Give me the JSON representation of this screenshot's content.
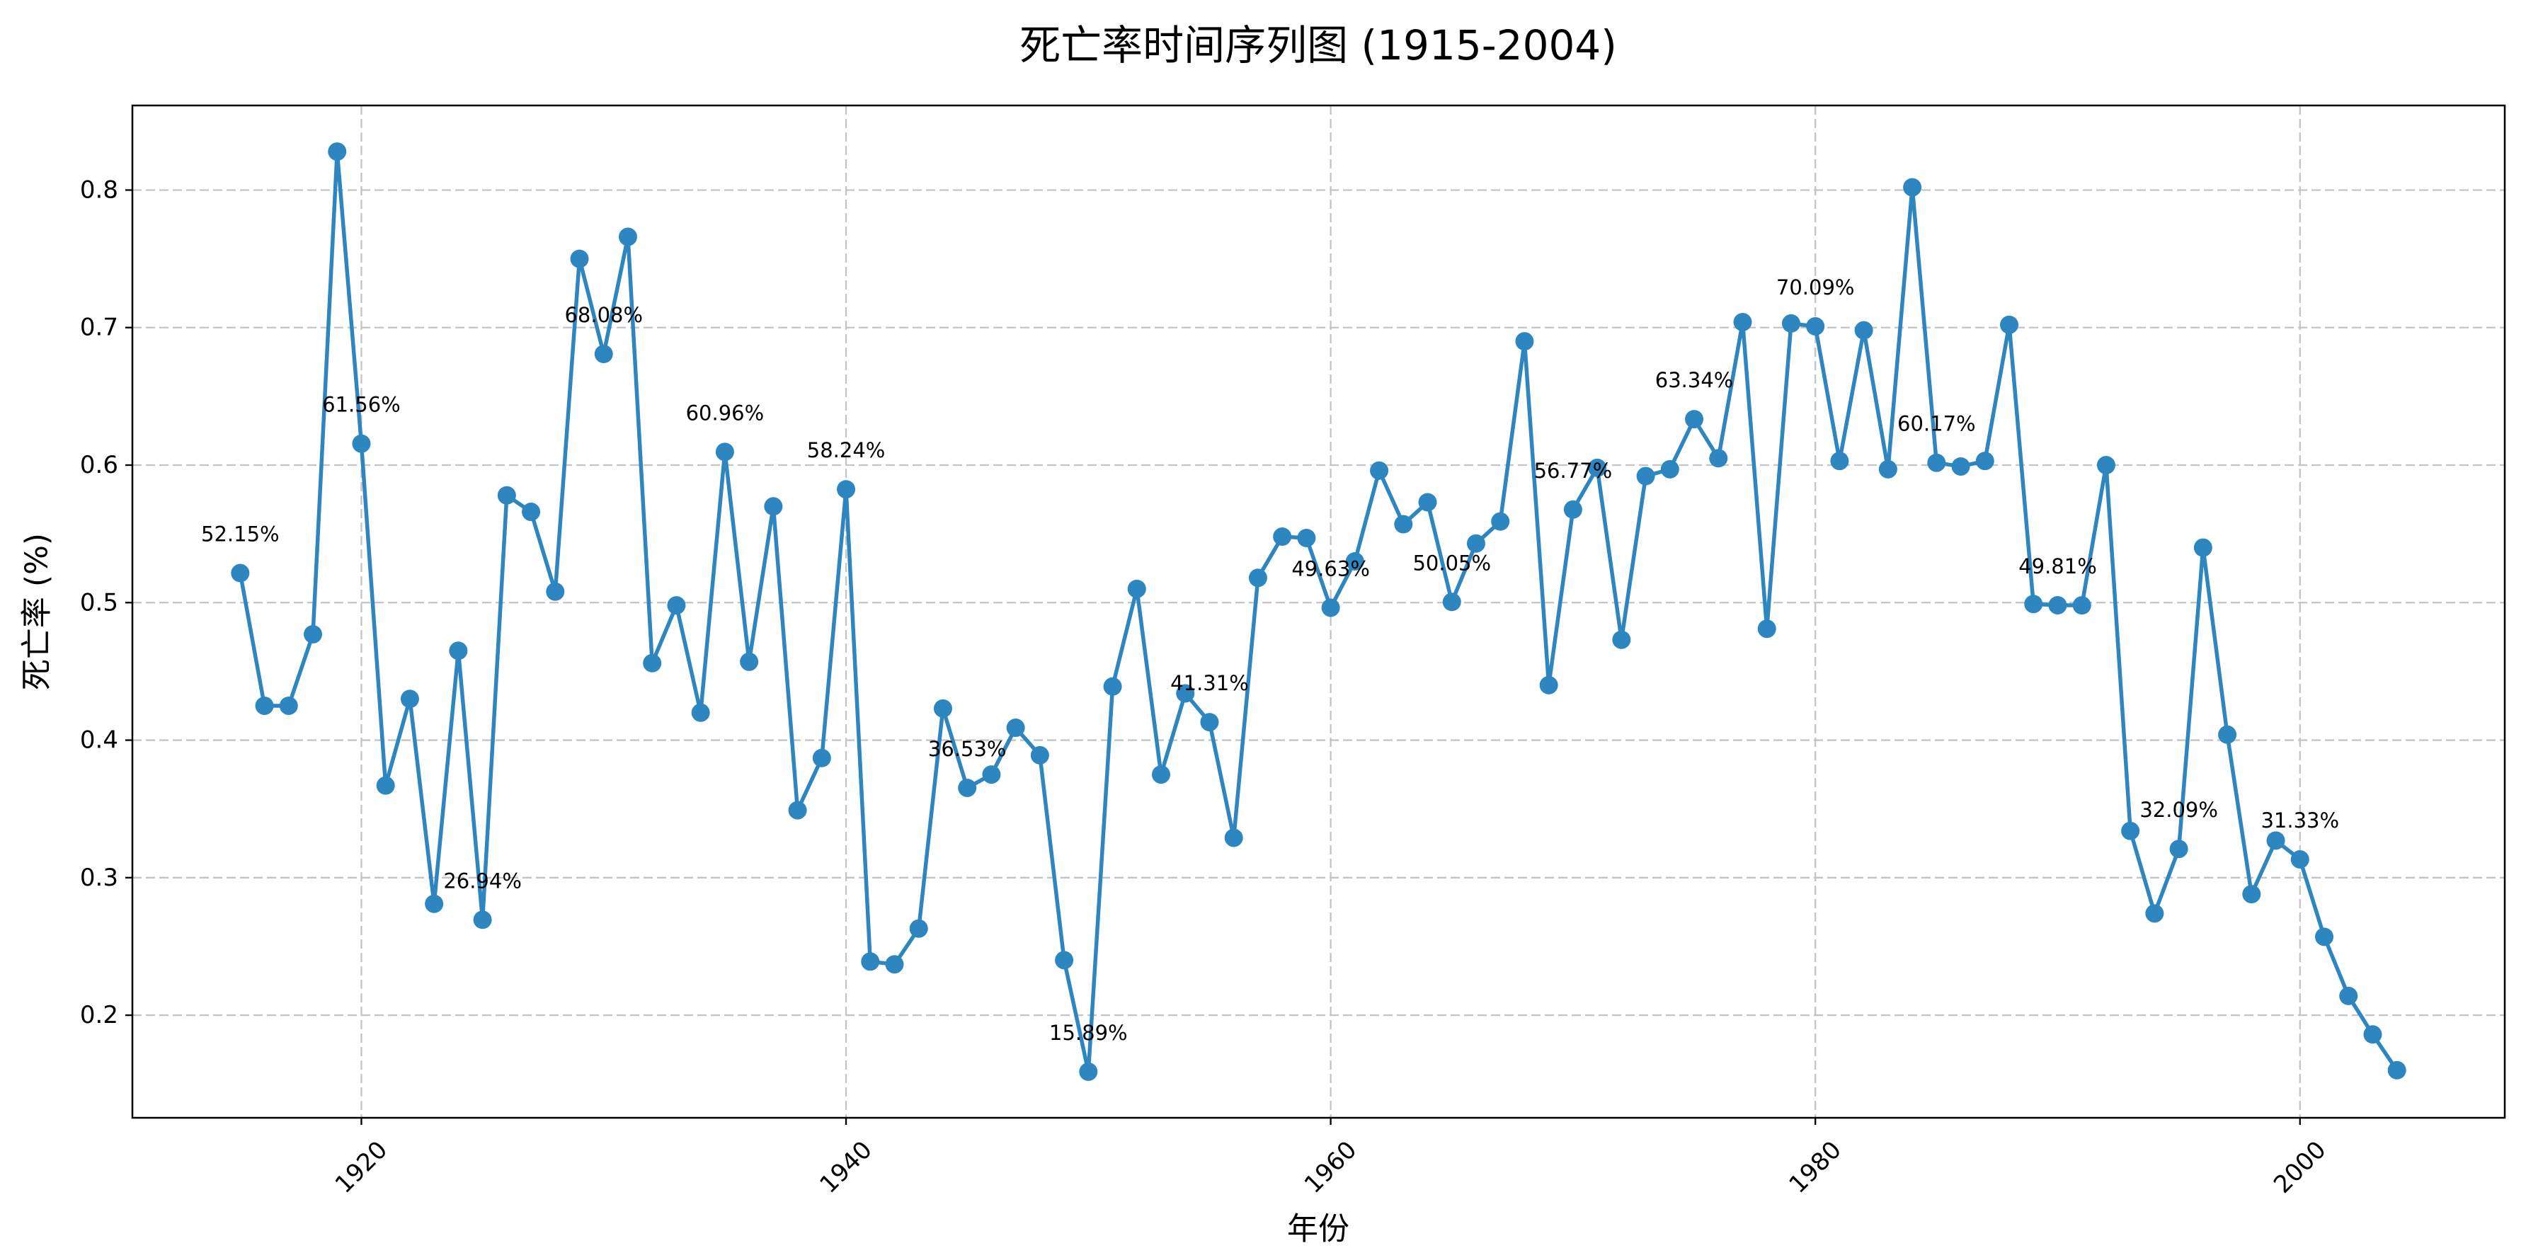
{
  "chart_data": {
    "type": "line",
    "title": "死亡率时间序列图 (1915-2004)",
    "xlabel": "年份",
    "ylabel": "死亡率 (%)",
    "x": [
      1915,
      1916,
      1917,
      1918,
      1919,
      1920,
      1921,
      1922,
      1923,
      1924,
      1925,
      1926,
      1927,
      1928,
      1929,
      1930,
      1931,
      1932,
      1933,
      1934,
      1935,
      1936,
      1937,
      1938,
      1939,
      1940,
      1941,
      1942,
      1943,
      1944,
      1945,
      1946,
      1947,
      1948,
      1949,
      1950,
      1951,
      1952,
      1953,
      1954,
      1955,
      1956,
      1957,
      1958,
      1959,
      1960,
      1961,
      1962,
      1963,
      1964,
      1965,
      1966,
      1967,
      1968,
      1969,
      1970,
      1971,
      1972,
      1973,
      1974,
      1975,
      1976,
      1977,
      1978,
      1979,
      1980,
      1981,
      1982,
      1983,
      1984,
      1985,
      1986,
      1987,
      1988,
      1989,
      1990,
      1991,
      1992,
      1993,
      1994,
      1995,
      1996,
      1997,
      1998,
      1999,
      2000,
      2001,
      2002,
      2003,
      2004
    ],
    "series": [
      {
        "color": "#2E86C1",
        "marker": "circle",
        "values": [
          0.5215,
          0.425,
          0.425,
          0.477,
          0.828,
          0.6156,
          0.367,
          0.43,
          0.281,
          0.465,
          0.2694,
          0.578,
          0.566,
          0.508,
          0.75,
          0.6808,
          0.766,
          0.456,
          0.498,
          0.42,
          0.6096,
          0.457,
          0.57,
          0.349,
          0.387,
          0.5824,
          0.239,
          0.237,
          0.263,
          0.423,
          0.3653,
          0.375,
          0.409,
          0.389,
          0.24,
          0.1589,
          0.439,
          0.51,
          0.375,
          0.434,
          0.4131,
          0.329,
          0.518,
          0.548,
          0.547,
          0.4963,
          0.53,
          0.596,
          0.557,
          0.573,
          0.5005,
          0.543,
          0.559,
          0.69,
          0.44,
          0.5677,
          0.598,
          0.473,
          0.592,
          0.597,
          0.6334,
          0.605,
          0.704,
          0.481,
          0.703,
          0.7009,
          0.603,
          0.698,
          0.597,
          0.802,
          0.6017,
          0.599,
          0.603,
          0.702,
          0.499,
          0.4981,
          0.498,
          0.6,
          0.334,
          0.274,
          0.3209,
          0.54,
          0.404,
          0.288,
          0.327,
          0.3133,
          0.257,
          0.214,
          0.186,
          0.16
        ]
      }
    ],
    "xlim": [
      1910.55,
      2008.45
    ],
    "ylim": [
      0.1254,
      0.8615
    ],
    "xticks": [
      {
        "value": 1920,
        "label": "1920"
      },
      {
        "value": 1940,
        "label": "1940"
      },
      {
        "value": 1960,
        "label": "1960"
      },
      {
        "value": 1980,
        "label": "1980"
      },
      {
        "value": 2000,
        "label": "2000"
      }
    ],
    "yticks": [
      {
        "value": 0.2,
        "label": "0.2"
      },
      {
        "value": 0.3,
        "label": "0.3"
      },
      {
        "value": 0.4,
        "label": "0.4"
      },
      {
        "value": 0.5,
        "label": "0.5"
      },
      {
        "value": 0.6,
        "label": "0.6"
      },
      {
        "value": 0.7,
        "label": "0.7"
      },
      {
        "value": 0.8,
        "label": "0.8"
      }
    ],
    "annotations": [
      {
        "x": 1915,
        "text": "52.15%"
      },
      {
        "x": 1920,
        "text": "61.56%"
      },
      {
        "x": 1925,
        "text": "26.94%"
      },
      {
        "x": 1930,
        "text": "68.08%"
      },
      {
        "x": 1935,
        "text": "60.96%"
      },
      {
        "x": 1940,
        "text": "58.24%"
      },
      {
        "x": 1945,
        "text": "36.53%"
      },
      {
        "x": 1950,
        "text": "15.89%"
      },
      {
        "x": 1955,
        "text": "41.31%"
      },
      {
        "x": 1960,
        "text": "49.63%"
      },
      {
        "x": 1965,
        "text": "50.05%"
      },
      {
        "x": 1970,
        "text": "56.77%"
      },
      {
        "x": 1975,
        "text": "63.34%"
      },
      {
        "x": 1980,
        "text": "70.09%"
      },
      {
        "x": 1985,
        "text": "60.17%"
      },
      {
        "x": 1990,
        "text": "49.81%"
      },
      {
        "x": 1995,
        "text": "32.09%"
      },
      {
        "x": 2000,
        "text": "31.33%"
      }
    ],
    "grid": true,
    "grid_style": "dashed",
    "legend": "none"
  }
}
